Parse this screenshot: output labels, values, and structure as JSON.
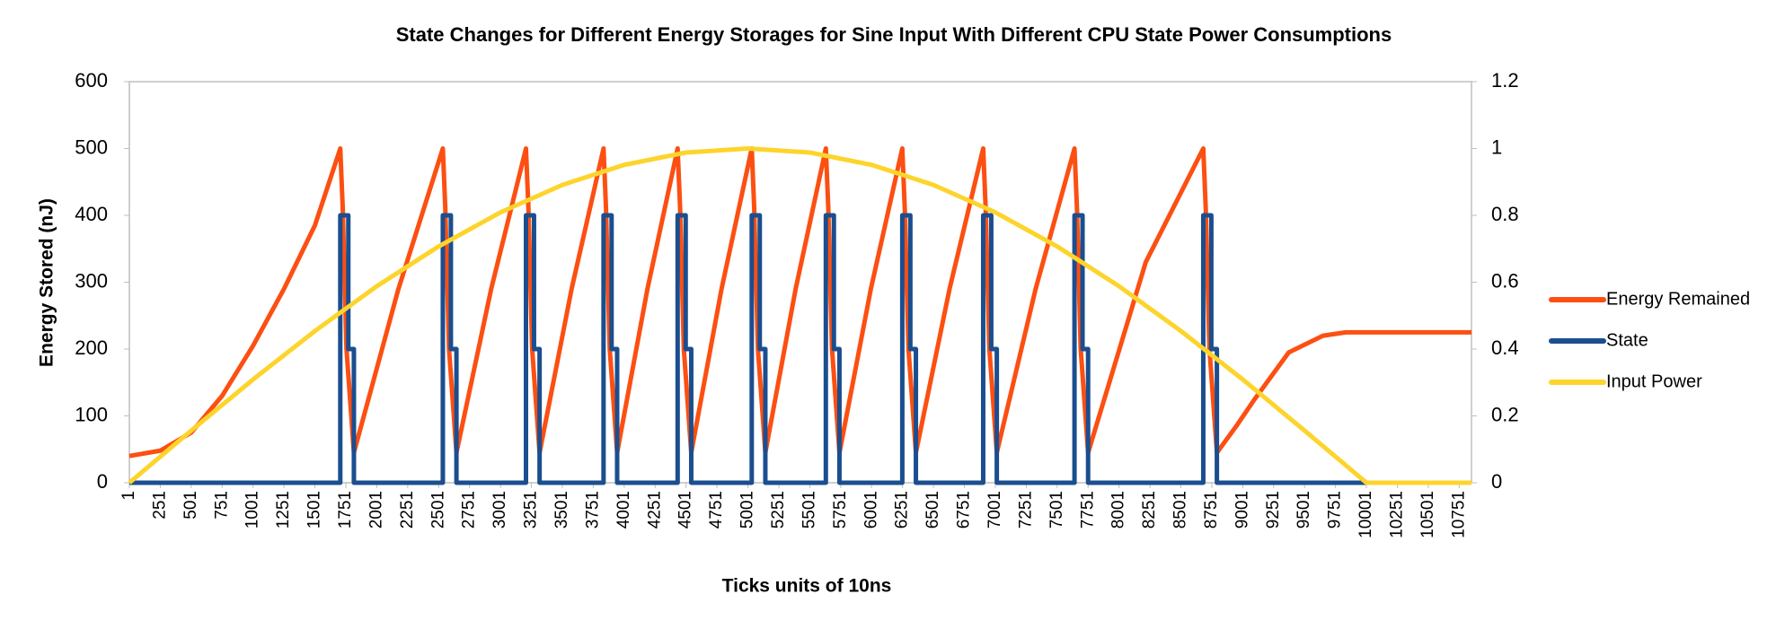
{
  "chart_data": {
    "type": "line",
    "title": "State Changes for Different Energy Storages for Sine Input With Different CPU State Power Consumptions",
    "xlabel": "Ticks units of 10ns",
    "ylabel": "Energy Stored (nJ)",
    "xlim": [
      1,
      10850
    ],
    "xticks": [
      1,
      251,
      501,
      751,
      1001,
      1251,
      1501,
      1751,
      2001,
      2251,
      2501,
      2751,
      3001,
      3251,
      3501,
      3751,
      4001,
      4251,
      4501,
      4751,
      5001,
      5251,
      5501,
      5751,
      6001,
      6251,
      6501,
      6751,
      7001,
      7251,
      7501,
      7751,
      8001,
      8251,
      8501,
      8751,
      9001,
      9251,
      9501,
      9751,
      10001,
      10251,
      10501,
      10751
    ],
    "ylim": [
      0,
      600
    ],
    "yticks": [
      0,
      100,
      200,
      300,
      400,
      500,
      600
    ],
    "y2lim": [
      0,
      1.2
    ],
    "y2ticks": [
      0,
      0.2,
      0.4,
      0.6,
      0.8,
      1,
      1.2
    ],
    "grid": false,
    "legend": "right",
    "series": [
      {
        "name": "Energy Remained",
        "color": "#fc4f12",
        "x": [
          1,
          251,
          501,
          751,
          1001,
          1251,
          1501,
          1706,
          1726,
          1756,
          1816,
          2176,
          2535,
          2555,
          2585,
          2645,
          2926,
          3207,
          3227,
          3257,
          3317,
          3576,
          3834,
          3854,
          3884,
          3944,
          4189,
          4433,
          4453,
          4483,
          4543,
          4788,
          5032,
          5052,
          5082,
          5142,
          5387,
          5631,
          5651,
          5681,
          5741,
          5995,
          6249,
          6269,
          6299,
          6359,
          6631,
          6903,
          6923,
          6953,
          7013,
          7327,
          7641,
          7661,
          7691,
          7751,
          8217,
          8682,
          8702,
          8732,
          8792,
          8950,
          9097,
          9373,
          9650,
          9834,
          10850
        ],
        "values": [
          40,
          48,
          75,
          130,
          205,
          290,
          385,
          500,
          410,
          200,
          45,
          290,
          500,
          410,
          200,
          45,
          290,
          500,
          410,
          200,
          45,
          290,
          500,
          410,
          200,
          45,
          290,
          500,
          410,
          200,
          45,
          290,
          500,
          410,
          200,
          45,
          290,
          500,
          410,
          200,
          45,
          290,
          500,
          410,
          200,
          45,
          290,
          500,
          410,
          200,
          45,
          290,
          500,
          410,
          200,
          45,
          330,
          500,
          410,
          200,
          45,
          85,
          125,
          195,
          220,
          225,
          225
        ]
      },
      {
        "name": "State",
        "color": "#1b4e8f",
        "x": [
          1,
          1706,
          1706,
          1771,
          1771,
          1816,
          1816,
          2535,
          2535,
          2600,
          2600,
          2645,
          2645,
          3207,
          3207,
          3272,
          3272,
          3317,
          3317,
          3834,
          3834,
          3899,
          3899,
          3944,
          3944,
          4433,
          4433,
          4498,
          4498,
          4543,
          4543,
          5032,
          5032,
          5097,
          5097,
          5142,
          5142,
          5631,
          5631,
          5696,
          5696,
          5741,
          5741,
          6249,
          6249,
          6314,
          6314,
          6359,
          6359,
          6903,
          6903,
          6968,
          6968,
          7013,
          7013,
          7641,
          7641,
          7706,
          7706,
          7751,
          7751,
          8682,
          8682,
          8747,
          8747,
          8792,
          8792,
          10850
        ],
        "values": [
          0,
          0,
          400,
          400,
          200,
          200,
          0,
          0,
          400,
          400,
          200,
          200,
          0,
          0,
          400,
          400,
          200,
          200,
          0,
          0,
          400,
          400,
          200,
          200,
          0,
          0,
          400,
          400,
          200,
          200,
          0,
          0,
          400,
          400,
          200,
          200,
          0,
          0,
          400,
          400,
          200,
          200,
          0,
          0,
          400,
          400,
          200,
          200,
          0,
          0,
          400,
          400,
          200,
          200,
          0,
          0,
          400,
          400,
          200,
          200,
          0,
          0,
          400,
          400,
          200,
          200,
          0,
          0
        ]
      },
      {
        "name": "Input Power",
        "color": "#fdd42c",
        "axis": "y2",
        "x": [
          1,
          501,
          1001,
          1501,
          2001,
          2501,
          3001,
          3501,
          4001,
          4501,
          5001,
          5501,
          6001,
          6501,
          7001,
          7501,
          8001,
          8501,
          9001,
          9501,
          10001,
          10850
        ],
        "values": [
          0,
          0.156,
          0.309,
          0.454,
          0.588,
          0.707,
          0.809,
          0.891,
          0.951,
          0.988,
          1,
          0.988,
          0.951,
          0.891,
          0.809,
          0.707,
          0.588,
          0.454,
          0.309,
          0.156,
          0,
          0
        ]
      }
    ]
  }
}
